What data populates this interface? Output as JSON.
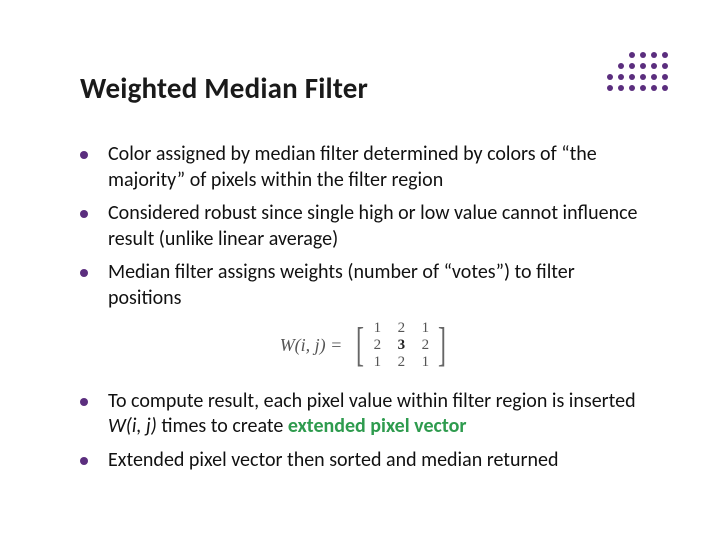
{
  "title": "Weighted Median Filter",
  "bullet_color": "#5b2e7e",
  "bullets_top": [
    "Color assigned by median filter determined by colors of “the majority” of pixels within the filter region",
    "Considered robust since single high or low value cannot influence result (unlike linear average)",
    "Median filter assigns weights (number of “votes”) to filter positions"
  ],
  "matrix": {
    "lhs": "W(i, j)  =",
    "values": [
      [
        1,
        2,
        1
      ],
      [
        2,
        3,
        2
      ],
      [
        1,
        2,
        1
      ]
    ],
    "center_row": 1,
    "center_col": 1
  },
  "bullet4_pre": "To compute result, each pixel value within filter region is inserted ",
  "bullet4_ital": "W(i, j)",
  "bullet4_mid": " times to create ",
  "bullet4_hl": "extended pixel vector",
  "bullet5": "Extended pixel vector then sorted and median returned",
  "deco": {
    "dark": "#5b2e7e",
    "light": "#a88bc2",
    "pattern": [
      [
        0,
        0,
        1,
        1,
        1,
        1
      ],
      [
        0,
        1,
        1,
        1,
        1,
        1
      ],
      [
        1,
        1,
        1,
        1,
        1,
        1
      ],
      [
        1,
        1,
        1,
        1,
        1,
        1
      ]
    ]
  }
}
